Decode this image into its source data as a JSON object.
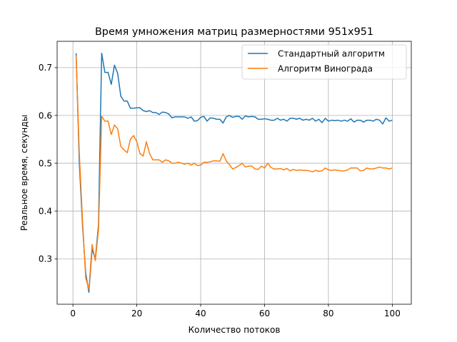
{
  "chart_data": {
    "type": "line",
    "title": "Время умножения матриц размерностями 951x951",
    "xlabel": "Количество потоков",
    "ylabel": "Реальное время, секунды",
    "xlim": [
      -4.95,
      105.95
    ],
    "ylim": [
      0.205,
      0.755
    ],
    "xticks": [
      0,
      20,
      40,
      60,
      80,
      100
    ],
    "yticks": [
      0.3,
      0.4,
      0.5,
      0.6,
      0.7
    ],
    "ytick_labels": [
      "0.3",
      "0.4",
      "0.5",
      "0.6",
      "0.7"
    ],
    "grid": true,
    "legend_position": "upper right",
    "series": [
      {
        "name": "Стандартный алгоритм",
        "color": "#1f77b4",
        "x": [
          1,
          2,
          3,
          4,
          5,
          6,
          7,
          8,
          9,
          10,
          11,
          12,
          13,
          14,
          15,
          16,
          17,
          18,
          19,
          20,
          21,
          22,
          23,
          24,
          25,
          26,
          27,
          28,
          29,
          30,
          31,
          32,
          33,
          34,
          35,
          36,
          37,
          38,
          39,
          40,
          41,
          42,
          43,
          44,
          45,
          46,
          47,
          48,
          49,
          50,
          51,
          52,
          53,
          54,
          55,
          56,
          57,
          58,
          59,
          60,
          61,
          62,
          63,
          64,
          65,
          66,
          67,
          68,
          69,
          70,
          71,
          72,
          73,
          74,
          75,
          76,
          77,
          78,
          79,
          80,
          81,
          82,
          83,
          84,
          85,
          86,
          87,
          88,
          89,
          90,
          91,
          92,
          93,
          94,
          95,
          96,
          97,
          98,
          99,
          100
        ],
        "values": [
          0.73,
          0.5,
          0.37,
          0.27,
          0.23,
          0.32,
          0.3,
          0.37,
          0.73,
          0.69,
          0.69,
          0.665,
          0.705,
          0.688,
          0.64,
          0.63,
          0.63,
          0.615,
          0.615,
          0.616,
          0.616,
          0.61,
          0.608,
          0.61,
          0.606,
          0.606,
          0.602,
          0.607,
          0.606,
          0.603,
          0.595,
          0.597,
          0.597,
          0.597,
          0.597,
          0.594,
          0.597,
          0.588,
          0.589,
          0.596,
          0.598,
          0.588,
          0.595,
          0.594,
          0.592,
          0.592,
          0.584,
          0.597,
          0.6,
          0.596,
          0.598,
          0.598,
          0.592,
          0.599,
          0.597,
          0.598,
          0.597,
          0.592,
          0.592,
          0.593,
          0.592,
          0.59,
          0.59,
          0.594,
          0.59,
          0.592,
          0.588,
          0.594,
          0.594,
          0.592,
          0.594,
          0.59,
          0.592,
          0.59,
          0.594,
          0.588,
          0.592,
          0.585,
          0.594,
          0.588,
          0.59,
          0.589,
          0.59,
          0.588,
          0.59,
          0.588,
          0.593,
          0.586,
          0.59,
          0.59,
          0.586,
          0.59,
          0.59,
          0.588,
          0.592,
          0.59,
          0.582,
          0.595,
          0.588,
          0.59
        ]
      },
      {
        "name": "Алгоритм Винограда",
        "color": "#ff7f0e",
        "x": [
          1,
          2,
          3,
          4,
          5,
          6,
          7,
          8,
          9,
          10,
          11,
          12,
          13,
          14,
          15,
          16,
          17,
          18,
          19,
          20,
          21,
          22,
          23,
          24,
          25,
          26,
          27,
          28,
          29,
          30,
          31,
          32,
          33,
          34,
          35,
          36,
          37,
          38,
          39,
          40,
          41,
          42,
          43,
          44,
          45,
          46,
          47,
          48,
          49,
          50,
          51,
          52,
          53,
          54,
          55,
          56,
          57,
          58,
          59,
          60,
          61,
          62,
          63,
          64,
          65,
          66,
          67,
          68,
          69,
          70,
          71,
          72,
          73,
          74,
          75,
          76,
          77,
          78,
          79,
          80,
          81,
          82,
          83,
          84,
          85,
          86,
          87,
          88,
          89,
          90,
          91,
          92,
          93,
          94,
          95,
          96,
          97,
          98,
          99,
          100
        ],
        "values": [
          0.725,
          0.52,
          0.38,
          0.26,
          0.236,
          0.33,
          0.296,
          0.36,
          0.598,
          0.588,
          0.588,
          0.56,
          0.58,
          0.572,
          0.535,
          0.528,
          0.522,
          0.55,
          0.558,
          0.545,
          0.52,
          0.515,
          0.545,
          0.52,
          0.507,
          0.507,
          0.507,
          0.502,
          0.507,
          0.505,
          0.5,
          0.5,
          0.502,
          0.5,
          0.498,
          0.5,
          0.496,
          0.5,
          0.495,
          0.496,
          0.502,
          0.502,
          0.503,
          0.505,
          0.505,
          0.504,
          0.52,
          0.505,
          0.497,
          0.488,
          0.491,
          0.495,
          0.5,
          0.492,
          0.494,
          0.494,
          0.488,
          0.487,
          0.494,
          0.49,
          0.5,
          0.491,
          0.488,
          0.488,
          0.489,
          0.486,
          0.489,
          0.484,
          0.487,
          0.485,
          0.486,
          0.485,
          0.485,
          0.484,
          0.482,
          0.485,
          0.483,
          0.484,
          0.49,
          0.486,
          0.485,
          0.486,
          0.485,
          0.484,
          0.484,
          0.486,
          0.49,
          0.49,
          0.49,
          0.484,
          0.485,
          0.49,
          0.488,
          0.488,
          0.49,
          0.492,
          0.49,
          0.49,
          0.488,
          0.49
        ]
      }
    ]
  }
}
